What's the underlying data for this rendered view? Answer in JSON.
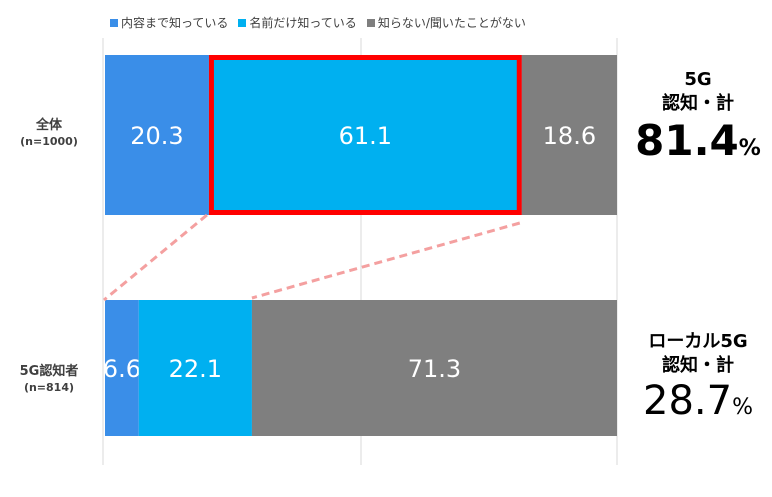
{
  "chart_data": {
    "type": "bar",
    "orientation": "horizontal-stacked-100",
    "categories": [
      {
        "label": "全体",
        "n": "(n=1000)"
      },
      {
        "label": "5G認知者",
        "n": "(n=814)"
      }
    ],
    "series": [
      {
        "name": "内容まで知っている",
        "color": "#3a8ee8",
        "values": [
          20.3,
          6.6
        ]
      },
      {
        "name": "名前だけ知っている",
        "color": "#00b0f0",
        "values": [
          61.1,
          22.1
        ]
      },
      {
        "name": "知らない/聞いたことがない",
        "color": "#7f7f7f",
        "values": [
          18.6,
          71.3
        ]
      }
    ],
    "data_labels": [
      [
        "20.3",
        "61.1",
        "18.6"
      ],
      [
        "6.6",
        "22.1",
        "71.3"
      ]
    ],
    "xlim": [
      0,
      100
    ],
    "grid": true,
    "legend": "top",
    "highlight": {
      "row": 0,
      "series": 1,
      "color": "#ff0000"
    },
    "connector_color": "#f4a0a0"
  },
  "summaries": [
    {
      "title": [
        "5G",
        "認知・計"
      ],
      "value": "81.4",
      "unit": "%",
      "bold": true
    },
    {
      "title": [
        "ローカル5G",
        "認知・計"
      ],
      "value": "28.7",
      "unit": "%",
      "bold": false
    }
  ]
}
